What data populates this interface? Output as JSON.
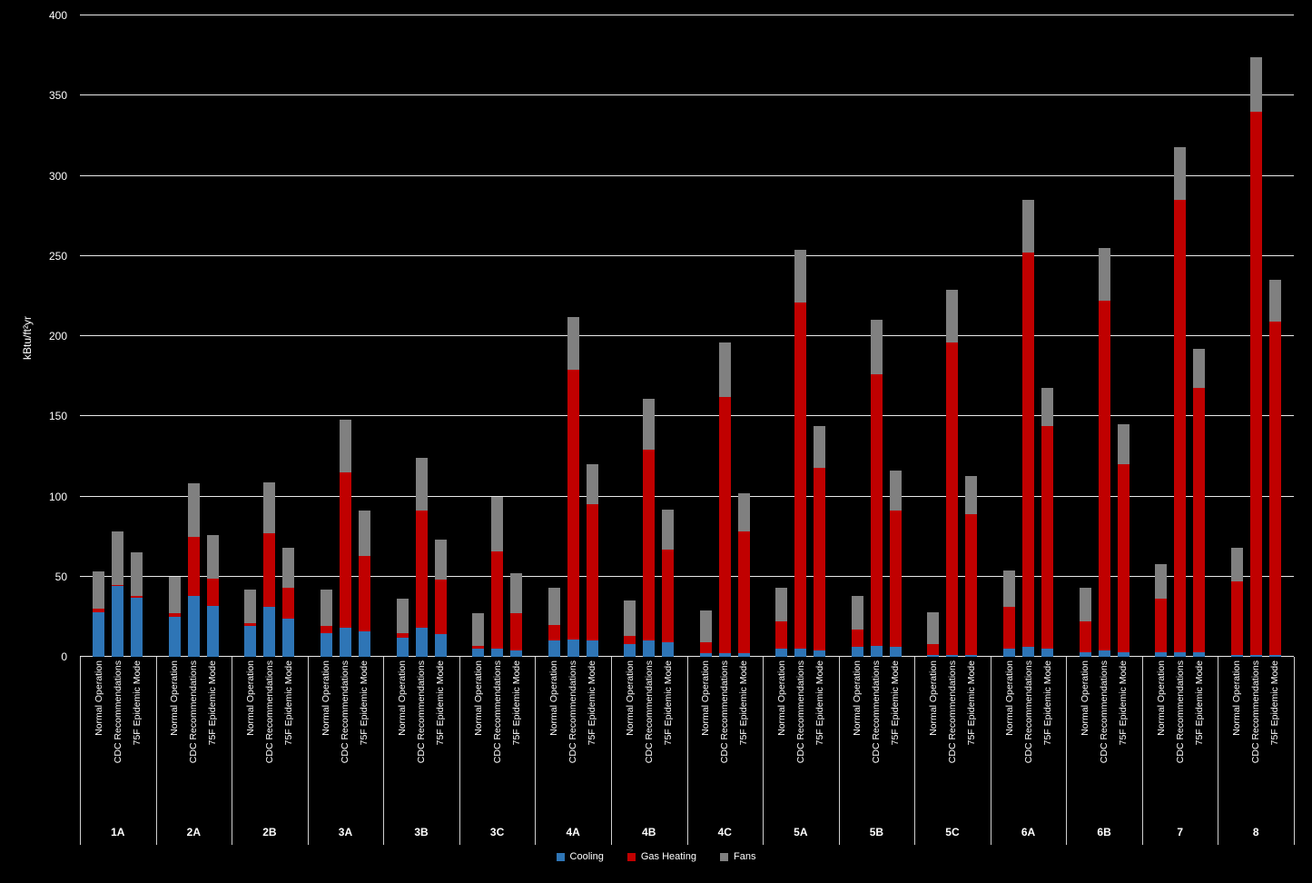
{
  "chart_data": {
    "type": "bar",
    "stacked": true,
    "title": "",
    "ylabel": "kBtu/ft²yr",
    "ylim": [
      0,
      400
    ],
    "ytick_step": 50,
    "background": "#000000",
    "gridline_color": "#E8E8E8",
    "text_color": "#FFFFFF",
    "legend_position": "bottom",
    "groups": [
      "1A",
      "2A",
      "2B",
      "3A",
      "3B",
      "3C",
      "4A",
      "4B",
      "4C",
      "5A",
      "5B",
      "5C",
      "6A",
      "6B",
      "7",
      "8"
    ],
    "bar_labels": [
      "Normal Operation",
      "CDC Recommendations",
      "75F Epidemic Mode"
    ],
    "series": [
      {
        "name": "Cooling",
        "color": "#2E75B6",
        "values": [
          [
            28,
            44,
            37
          ],
          [
            25,
            38,
            32
          ],
          [
            19,
            31,
            24
          ],
          [
            15,
            18,
            16
          ],
          [
            12,
            18,
            14
          ],
          [
            5,
            5,
            4
          ],
          [
            10,
            11,
            10
          ],
          [
            8,
            10,
            9
          ],
          [
            2,
            2,
            2
          ],
          [
            5,
            5,
            4
          ],
          [
            6,
            7,
            6
          ],
          [
            1,
            1,
            1
          ],
          [
            5,
            6,
            5
          ],
          [
            3,
            4,
            3
          ],
          [
            3,
            3,
            3
          ],
          [
            1,
            1,
            1
          ]
        ]
      },
      {
        "name": "Gas Heating",
        "color": "#C00000",
        "values": [
          [
            2,
            1,
            1
          ],
          [
            2,
            37,
            17
          ],
          [
            2,
            46,
            19
          ],
          [
            4,
            97,
            47
          ],
          [
            3,
            73,
            34
          ],
          [
            2,
            61,
            23
          ],
          [
            10,
            168,
            85
          ],
          [
            5,
            119,
            58
          ],
          [
            7,
            160,
            76
          ],
          [
            17,
            216,
            114
          ],
          [
            11,
            169,
            85
          ],
          [
            7,
            195,
            88
          ],
          [
            26,
            246,
            139
          ],
          [
            19,
            218,
            117
          ],
          [
            33,
            282,
            165
          ],
          [
            46,
            339,
            208
          ]
        ]
      },
      {
        "name": "Fans",
        "color": "#808080",
        "values": [
          [
            23,
            33,
            27
          ],
          [
            23,
            33,
            27
          ],
          [
            21,
            32,
            25
          ],
          [
            23,
            33,
            28
          ],
          [
            21,
            33,
            25
          ],
          [
            20,
            34,
            25
          ],
          [
            23,
            33,
            25
          ],
          [
            22,
            32,
            25
          ],
          [
            20,
            34,
            24
          ],
          [
            21,
            33,
            26
          ],
          [
            21,
            34,
            25
          ],
          [
            20,
            33,
            24
          ],
          [
            23,
            33,
            24
          ],
          [
            21,
            33,
            25
          ],
          [
            22,
            33,
            24
          ],
          [
            21,
            34,
            26
          ]
        ]
      }
    ]
  }
}
